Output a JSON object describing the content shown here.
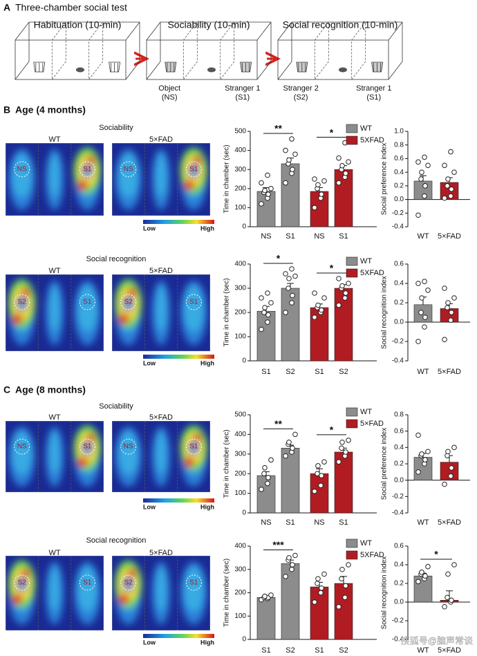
{
  "panel_a": {
    "letter": "A",
    "title": "Three-chamber social test",
    "phases": [
      {
        "title": "Habituation (10-min)"
      },
      {
        "title": "Sociability (10-min)",
        "left": [
          "Object",
          "(NS)"
        ],
        "right": [
          "Stranger 1",
          "(S1)"
        ]
      },
      {
        "title": "Social recognition (10-min)",
        "left": [
          "Stranger 2",
          "(S2)"
        ],
        "right": [
          "Stranger 1",
          "(S1)"
        ]
      }
    ]
  },
  "sections": [
    {
      "letter": "B",
      "title": "Age (4 months)"
    },
    {
      "letter": "C",
      "title": "Age (8 months)"
    }
  ],
  "heatmaps": [
    {
      "title": "Sociability",
      "groups": [
        "WT",
        "5×FAD"
      ],
      "zones": [
        "NS",
        "S1"
      ],
      "scale": [
        "Low",
        "High"
      ]
    },
    {
      "title": "Social recognition",
      "groups": [
        "WT",
        "5×FAD"
      ],
      "zones": [
        "S2",
        "S1"
      ],
      "scale": [
        "Low",
        "High"
      ]
    },
    {
      "title": "Sociability",
      "groups": [
        "WT",
        "5×FAD"
      ],
      "zones": [
        "NS",
        "S1"
      ],
      "scale": [
        "Low",
        "High"
      ]
    },
    {
      "title": "Social recognition",
      "groups": [
        "WT",
        "5×FAD"
      ],
      "zones": [
        "S2",
        "S1"
      ],
      "scale": [
        "Low",
        "High"
      ]
    }
  ],
  "chart_data": [
    {
      "type": "bar",
      "ylabel": "Time in chamber (sec)",
      "categories": [
        "NS",
        "S1",
        "NS",
        "S1"
      ],
      "values": [
        185,
        330,
        185,
        300
      ],
      "errors": [
        20,
        30,
        20,
        20
      ],
      "colors": [
        "#8c8c8c",
        "#8c8c8c",
        "#b01c22",
        "#b01c22"
      ],
      "points": [
        [
          120,
          150,
          170,
          180,
          190,
          200,
          230,
          270
        ],
        [
          230,
          280,
          300,
          330,
          350,
          380,
          400,
          460
        ],
        [
          100,
          150,
          170,
          200,
          220,
          240,
          250
        ],
        [
          230,
          260,
          280,
          300,
          320,
          340,
          360,
          440
        ]
      ],
      "legend": [
        {
          "name": "WT",
          "color": "#8c8c8c"
        },
        {
          "name": "5XFAD",
          "color": "#b01c22"
        }
      ],
      "significance": [
        "**",
        "*"
      ],
      "ylim": [
        0,
        500
      ],
      "yticks": [
        0,
        100,
        200,
        300,
        400,
        500
      ]
    },
    {
      "type": "bar",
      "ylabel": "Social preference index",
      "categories": [
        "WT",
        "5×FAD"
      ],
      "values": [
        0.27,
        0.25
      ],
      "errors": [
        0.08,
        0.07
      ],
      "colors": [
        "#8c8c8c",
        "#b01c22"
      ],
      "points": [
        [
          -0.23,
          0.05,
          0.2,
          0.3,
          0.4,
          0.5,
          0.55,
          0.62
        ],
        [
          0.02,
          0.05,
          0.15,
          0.2,
          0.3,
          0.4,
          0.5,
          0.7
        ]
      ],
      "ylim": [
        -0.4,
        1.0
      ],
      "yticks": [
        {
          "value": 1.0,
          "label": "1.0"
        },
        0.8,
        0.6,
        0.4,
        0.2,
        {
          "value": 0,
          "label": "0.0"
        },
        -0.2,
        -0.4
      ]
    },
    {
      "type": "bar",
      "ylabel": "Time in chamber (sec)",
      "categories": [
        "S1",
        "S2",
        "S1",
        "S2"
      ],
      "values": [
        205,
        300,
        220,
        300
      ],
      "errors": [
        20,
        20,
        15,
        15
      ],
      "colors": [
        "#8c8c8c",
        "#8c8c8c",
        "#b01c22",
        "#b01c22"
      ],
      "points": [
        [
          130,
          160,
          190,
          200,
          220,
          240,
          260,
          280
        ],
        [
          200,
          240,
          270,
          300,
          340,
          350,
          360,
          380
        ],
        [
          180,
          200,
          210,
          220,
          230,
          260,
          280
        ],
        [
          230,
          260,
          280,
          300,
          310,
          320,
          340
        ]
      ],
      "legend": [
        {
          "name": "WT",
          "color": "#8c8c8c"
        },
        {
          "name": "5XFAD",
          "color": "#b01c22"
        }
      ],
      "significance": [
        "*",
        "*"
      ],
      "ylim": [
        0,
        400
      ],
      "yticks": [
        0,
        100,
        200,
        300,
        400
      ]
    },
    {
      "type": "bar",
      "ylabel": "Social recognition index",
      "categories": [
        "WT",
        "5×FAD"
      ],
      "values": [
        0.18,
        0.14
      ],
      "errors": [
        0.08,
        0.05
      ],
      "colors": [
        "#8c8c8c",
        "#b01c22"
      ],
      "points": [
        [
          -0.2,
          -0.05,
          0.05,
          0.1,
          0.25,
          0.33,
          0.4,
          0.42
        ],
        [
          -0.18,
          0.02,
          0.1,
          0.15,
          0.2,
          0.25,
          0.35
        ]
      ],
      "ylim": [
        -0.4,
        0.6
      ],
      "yticks": [
        0.6,
        0.4,
        0.2,
        {
          "value": 0,
          "label": "0.0"
        },
        -0.2,
        -0.4
      ]
    },
    {
      "type": "bar",
      "ylabel": "Time in chamber (sec)",
      "categories": [
        "NS",
        "S1",
        "NS",
        "S1"
      ],
      "values": [
        190,
        330,
        200,
        310
      ],
      "errors": [
        20,
        15,
        25,
        20
      ],
      "colors": [
        "#8c8c8c",
        "#8c8c8c",
        "#b01c22",
        "#b01c22"
      ],
      "points": [
        [
          120,
          150,
          180,
          200,
          230,
          270
        ],
        [
          290,
          310,
          330,
          350,
          360,
          400
        ],
        [
          110,
          140,
          190,
          200,
          240,
          260
        ],
        [
          260,
          290,
          310,
          330,
          360,
          370
        ]
      ],
      "legend": [
        {
          "name": "WT",
          "color": "#8c8c8c"
        },
        {
          "name": "5×FAD",
          "color": "#b01c22"
        }
      ],
      "significance": [
        "**",
        "*"
      ],
      "ylim": [
        0,
        500
      ],
      "yticks": [
        0,
        100,
        200,
        300,
        400,
        500
      ]
    },
    {
      "type": "bar",
      "ylabel": "Social preference index",
      "categories": [
        "WT",
        "5×FAD"
      ],
      "values": [
        0.28,
        0.22
      ],
      "errors": [
        0.05,
        0.08
      ],
      "colors": [
        "#8c8c8c",
        "#b01c22"
      ],
      "points": [
        [
          0.1,
          0.2,
          0.25,
          0.3,
          0.32,
          0.35,
          0.55
        ],
        [
          -0.05,
          0.05,
          0.15,
          0.3,
          0.35,
          0.4
        ]
      ],
      "ylim": [
        -0.4,
        0.8
      ],
      "yticks": [
        0.8,
        0.6,
        0.4,
        0.2,
        {
          "value": 0,
          "label": "0.0"
        },
        -0.2,
        -0.4
      ]
    },
    {
      "type": "bar",
      "ylabel": "Time in chamber (sec)",
      "categories": [
        "S1",
        "S2",
        "S1",
        "S2"
      ],
      "values": [
        180,
        325,
        225,
        240
      ],
      "errors": [
        8,
        15,
        20,
        30
      ],
      "colors": [
        "#8c8c8c",
        "#8c8c8c",
        "#b01c22",
        "#b01c22"
      ],
      "points": [
        [
          170,
          175,
          180,
          180,
          185,
          190
        ],
        [
          270,
          300,
          320,
          340,
          350,
          360
        ],
        [
          160,
          200,
          220,
          240,
          260,
          280
        ],
        [
          140,
          180,
          230,
          260,
          300,
          320
        ]
      ],
      "legend": [
        {
          "name": "WT",
          "color": "#8c8c8c"
        },
        {
          "name": "5XFAD",
          "color": "#b01c22"
        }
      ],
      "significance": [
        "***",
        null
      ],
      "ylim": [
        0,
        400
      ],
      "yticks": [
        0,
        100,
        200,
        300,
        400
      ]
    },
    {
      "type": "bar",
      "ylabel": "Social recognition index",
      "categories": [
        "WT",
        "5×FAD"
      ],
      "values": [
        0.28,
        0.02
      ],
      "errors": [
        0.03,
        0.1
      ],
      "colors": [
        "#8c8c8c",
        "#b01c22"
      ],
      "points": [
        [
          0.22,
          0.25,
          0.28,
          0.3,
          0.32,
          0.38
        ],
        [
          -0.05,
          0,
          0.02,
          0.05,
          0.3,
          0.4
        ]
      ],
      "significance": [
        "*"
      ],
      "ylim": [
        -0.4,
        0.6
      ],
      "yticks": [
        0.6,
        0.4,
        0.2,
        {
          "value": 0,
          "label": "0.0"
        },
        -0.2,
        -0.4
      ]
    }
  ],
  "watermark": "搜狐号@脑声常谈"
}
